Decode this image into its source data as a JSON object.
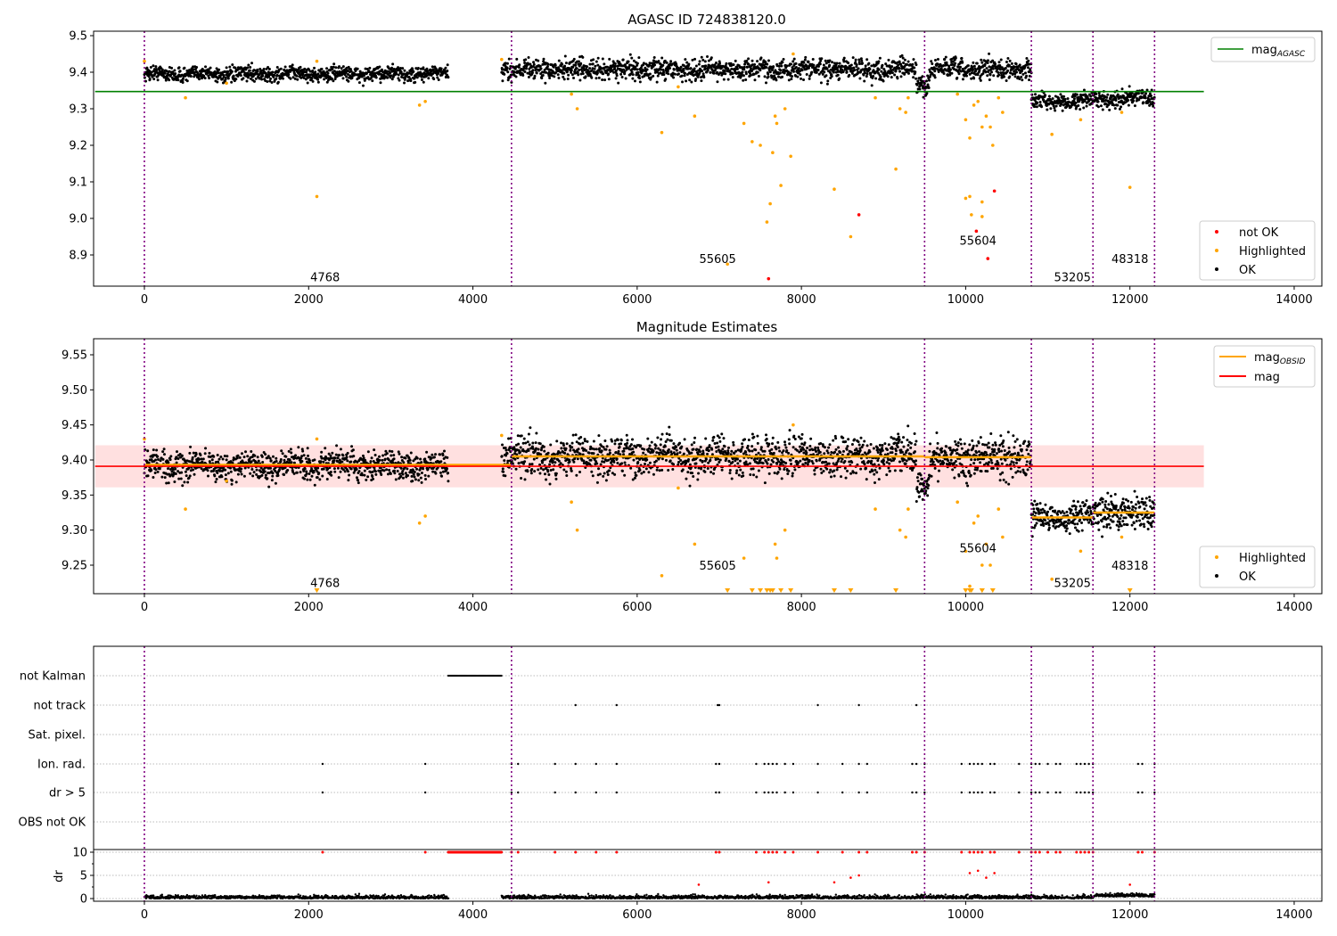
{
  "chart_data": [
    {
      "type": "scatter",
      "title": "AGASC ID 724838120.0",
      "ylim": [
        8.82,
        9.51
      ],
      "xlim": [
        -600,
        14300
      ],
      "xticks": [
        0,
        2000,
        4000,
        6000,
        8000,
        10000,
        12000,
        14000
      ],
      "yticks": [
        8.9,
        9.0,
        9.1,
        9.2,
        9.3,
        9.4,
        9.5
      ],
      "mag_agasc": 9.347,
      "legend_upper": {
        "label": "mag",
        "sub": "AGASC"
      },
      "legend_lower": [
        "not OK",
        "Highlighted",
        "OK"
      ],
      "obsid_labels": [
        {
          "text": "4768",
          "x": 2200,
          "y": 8.84
        },
        {
          "text": "55605",
          "x": 6980,
          "y": 8.89
        },
        {
          "text": "55604",
          "x": 10150,
          "y": 8.94
        },
        {
          "text": "53205",
          "x": 11300,
          "y": 8.84
        },
        {
          "text": "48318",
          "x": 12000,
          "y": 8.89
        }
      ],
      "highlighted": [
        [
          0,
          9.43
        ],
        [
          500,
          9.33
        ],
        [
          1000,
          9.37
        ],
        [
          2100,
          9.06
        ],
        [
          2100,
          9.43
        ],
        [
          3350,
          9.31
        ],
        [
          3420,
          9.32
        ],
        [
          4350,
          9.435
        ],
        [
          5200,
          9.34
        ],
        [
          5270,
          9.3
        ],
        [
          6300,
          9.235
        ],
        [
          6500,
          9.36
        ],
        [
          6700,
          9.28
        ],
        [
          7100,
          8.875
        ],
        [
          7300,
          9.26
        ],
        [
          7400,
          9.21
        ],
        [
          7500,
          9.2
        ],
        [
          7580,
          8.99
        ],
        [
          7620,
          9.04
        ],
        [
          7650,
          9.18
        ],
        [
          7680,
          9.28
        ],
        [
          7700,
          9.26
        ],
        [
          7750,
          9.09
        ],
        [
          7800,
          9.3
        ],
        [
          7870,
          9.17
        ],
        [
          7900,
          9.45
        ],
        [
          8400,
          9.08
        ],
        [
          8600,
          8.95
        ],
        [
          8900,
          9.33
        ],
        [
          9150,
          9.135
        ],
        [
          9200,
          9.3
        ],
        [
          9270,
          9.29
        ],
        [
          9300,
          9.33
        ],
        [
          9900,
          9.34
        ],
        [
          10000,
          9.27
        ],
        [
          10000,
          9.055
        ],
        [
          10050,
          9.06
        ],
        [
          10050,
          9.22
        ],
        [
          10070,
          9.01
        ],
        [
          10100,
          9.31
        ],
        [
          10150,
          9.32
        ],
        [
          10200,
          9.25
        ],
        [
          10200,
          9.005
        ],
        [
          10200,
          9.045
        ],
        [
          10250,
          9.28
        ],
        [
          10300,
          9.25
        ],
        [
          10330,
          9.2
        ],
        [
          10400,
          9.33
        ],
        [
          10450,
          9.29
        ],
        [
          11050,
          9.23
        ],
        [
          11400,
          9.27
        ],
        [
          11900,
          9.29
        ],
        [
          12000,
          9.085
        ]
      ],
      "not_ok": [
        [
          7600,
          8.835
        ],
        [
          8700,
          9.01
        ],
        [
          10130,
          8.965
        ],
        [
          10270,
          8.89
        ],
        [
          10350,
          9.075
        ]
      ]
    },
    {
      "type": "scatter",
      "title": "Magnitude Estimates",
      "ylim": [
        9.21,
        9.57
      ],
      "xticks": [
        0,
        2000,
        4000,
        6000,
        8000,
        10000,
        12000,
        14000
      ],
      "yticks": [
        9.25,
        9.3,
        9.35,
        9.4,
        9.45,
        9.5,
        9.55
      ],
      "mag": 9.391,
      "mag_band": [
        9.361,
        9.421
      ],
      "mag_obsid": [
        {
          "x0": 0,
          "x1": 4470,
          "value": 9.393
        },
        {
          "x0": 4470,
          "x1": 9500,
          "value": 9.405
        },
        {
          "x0": 9500,
          "x1": 10800,
          "value": 9.404
        },
        {
          "x0": 10800,
          "x1": 11550,
          "value": 9.318
        },
        {
          "x0": 11550,
          "x1": 12300,
          "value": 9.325
        }
      ],
      "legend_upper": [
        {
          "label": "mag",
          "sub": "OBSID"
        },
        {
          "label": "mag",
          "sub": ""
        }
      ],
      "legend_lower": [
        "Highlighted",
        "OK"
      ],
      "obsid_labels": [
        {
          "text": "4768",
          "x": 2200,
          "y": 9.225
        },
        {
          "text": "55605",
          "x": 6980,
          "y": 9.25
        },
        {
          "text": "55604",
          "x": 10150,
          "y": 9.275
        },
        {
          "text": "53205",
          "x": 11300,
          "y": 9.225
        },
        {
          "text": "48318",
          "x": 12000,
          "y": 9.25
        }
      ]
    },
    {
      "type": "scatter",
      "flag_labels": [
        "not Kalman",
        "not track",
        "Sat. pixel.",
        "Ion. rad.",
        "dr > 5",
        "OBS not OK"
      ],
      "dr_label": "dr",
      "dr_ticks": [
        0,
        5,
        10
      ],
      "flags": {
        "not track": [
          5250,
          5750,
          6980,
          7000,
          8200,
          8700,
          9400
        ],
        "Ion. rad.": [
          2170,
          3420,
          4470,
          4550,
          5000,
          5250,
          5500,
          5750,
          6960,
          7000,
          7450,
          7550,
          7600,
          7650,
          7700,
          7800,
          7900,
          8200,
          8500,
          8700,
          8800,
          9350,
          9400,
          9500,
          9950,
          10050,
          10100,
          10150,
          10200,
          10300,
          10350,
          10650,
          10800,
          10850,
          10900,
          11000,
          11100,
          11150,
          11350,
          11400,
          11450,
          11500,
          11550,
          12100,
          12150,
          12300
        ],
        "dr > 5": [
          2170,
          3420,
          4470,
          4550,
          5000,
          5250,
          5500,
          5750,
          6960,
          7000,
          7450,
          7550,
          7600,
          7650,
          7700,
          7800,
          7900,
          8200,
          8500,
          8700,
          8800,
          9350,
          9400,
          9500,
          9950,
          10050,
          10100,
          10150,
          10200,
          10300,
          10350,
          10650,
          10800,
          10850,
          10900,
          11000,
          11100,
          11150,
          11350,
          11400,
          11450,
          11500,
          11550,
          12100,
          12150,
          12300
        ]
      },
      "not_kalman_range": [
        3700,
        4350
      ]
    }
  ],
  "segments": [
    {
      "x0": 0,
      "x1": 3700,
      "mean": 9.392,
      "sd": 0.01
    },
    {
      "x0": 4350,
      "x1": 9500,
      "mean": 9.405,
      "sd": 0.014
    },
    {
      "x0": 9500,
      "x1": 10800,
      "mean": 9.405,
      "sd": 0.014
    },
    {
      "x0": 10800,
      "x1": 11550,
      "mean": 9.318,
      "sd": 0.01
    },
    {
      "x0": 11550,
      "x1": 12300,
      "mean": 9.325,
      "sd": 0.012
    }
  ],
  "obsid_boundaries": [
    0,
    4470,
    9500,
    10800,
    11550,
    12300
  ],
  "colors": {
    "ok": "#000000",
    "highlighted": "#ffa500",
    "not_ok": "#ff0000",
    "agasc": "#008000",
    "mag": "#ff0000",
    "mag_obsid": "#ffa500",
    "boundary": "#800080"
  }
}
